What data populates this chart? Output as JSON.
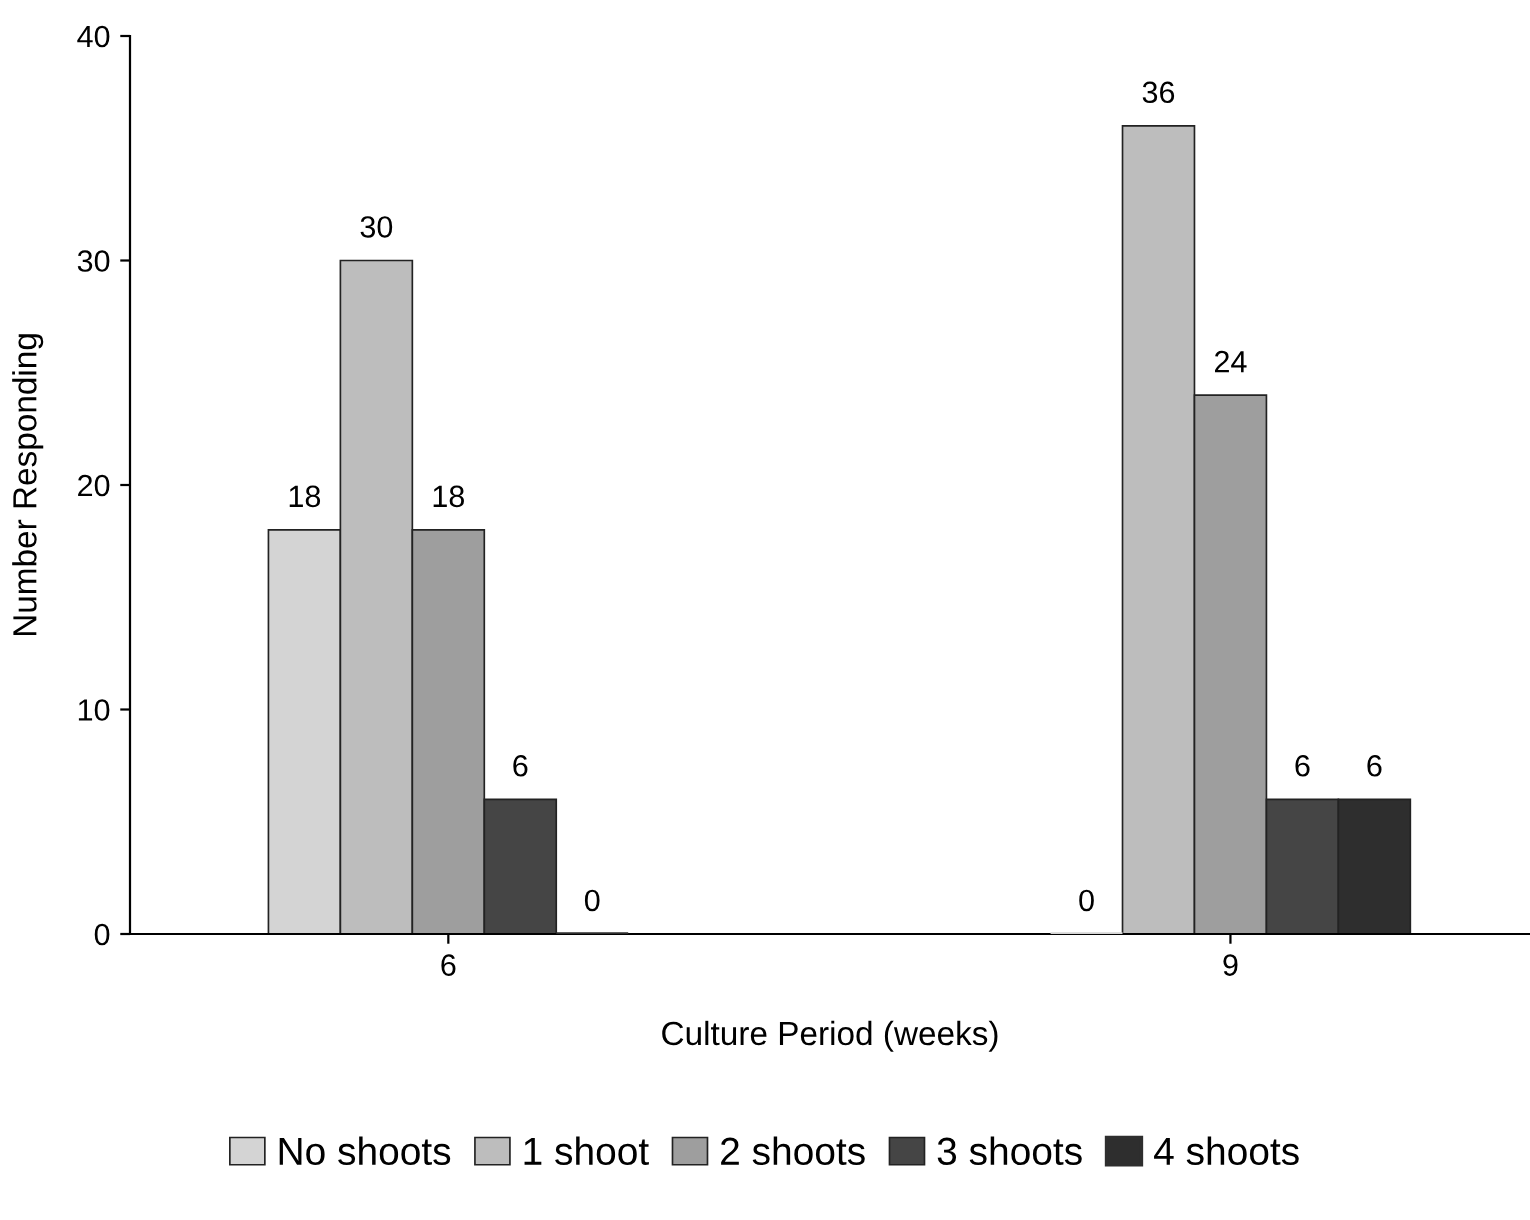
{
  "chart_data": {
    "type": "bar",
    "xlabel": "Culture Period (weeks)",
    "ylabel": "Number Responding",
    "categories": [
      "6",
      "9"
    ],
    "series": [
      {
        "name": "No shoots",
        "color": "#d4d4d4",
        "values": [
          18,
          0
        ]
      },
      {
        "name": "1 shoot",
        "color": "#bdbdbd",
        "values": [
          30,
          36
        ]
      },
      {
        "name": "2 shoots",
        "color": "#9e9e9e",
        "values": [
          18,
          24
        ]
      },
      {
        "name": "3 shoots",
        "color": "#454545",
        "values": [
          6,
          6
        ]
      },
      {
        "name": "4 shoots",
        "color": "#2e2e2e",
        "values": [
          0,
          6
        ]
      }
    ],
    "ylim": [
      0,
      40
    ],
    "yticks": [
      0,
      10,
      20,
      30,
      40
    ],
    "data_labels": true,
    "grid": false,
    "legend": "bottom"
  }
}
